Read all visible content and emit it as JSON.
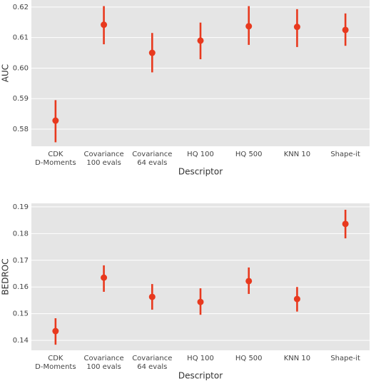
{
  "chart_data": [
    {
      "type": "pointplot",
      "xlabel": "Descriptor",
      "ylabel": "AUC",
      "categories": [
        [
          "CDK",
          "D-Moments"
        ],
        [
          "Covariance",
          "100 evals"
        ],
        [
          "Covariance",
          "64 evals"
        ],
        [
          "HQ 100"
        ],
        [
          "HQ 500"
        ],
        [
          "KNN 10"
        ],
        [
          "Shape-it"
        ]
      ],
      "values": [
        0.5828,
        0.6142,
        0.605,
        0.609,
        0.6137,
        0.6135,
        0.6125
      ],
      "ci_low": [
        0.5757,
        0.6078,
        0.5986,
        0.6029,
        0.6076,
        0.6069,
        0.6073
      ],
      "ci_high": [
        0.5895,
        0.6203,
        0.6115,
        0.6149,
        0.6203,
        0.6193,
        0.6179
      ],
      "color": "#e8391e",
      "ylim": [
        0.5744,
        0.6223
      ],
      "yticks": [
        0.58,
        0.59,
        {
          "value": 0.6,
          "label": "0.60"
        },
        0.61,
        0.62
      ],
      "grid": true
    },
    {
      "type": "pointplot",
      "xlabel": "Descriptor",
      "ylabel": "BEDROC",
      "categories": [
        [
          "CDK",
          "D-Moments"
        ],
        [
          "Covariance",
          "100 evals"
        ],
        [
          "Covariance",
          "64 evals"
        ],
        [
          "HQ 100"
        ],
        [
          "HQ 500"
        ],
        [
          "KNN 10"
        ],
        [
          "Shape-it"
        ]
      ],
      "values": [
        0.1435,
        0.1635,
        0.1563,
        0.1544,
        0.1622,
        0.1555,
        0.1836
      ],
      "ci_low": [
        0.1384,
        0.1582,
        0.1515,
        0.1496,
        0.1574,
        0.1508,
        0.1782
      ],
      "ci_high": [
        0.1483,
        0.1681,
        0.1611,
        0.1595,
        0.1673,
        0.16,
        0.1889
      ],
      "color": "#e8391e",
      "ylim": [
        0.1363,
        0.1913
      ],
      "yticks": [
        0.14,
        0.15,
        0.16,
        0.17,
        0.18,
        0.19
      ],
      "grid": true
    }
  ]
}
